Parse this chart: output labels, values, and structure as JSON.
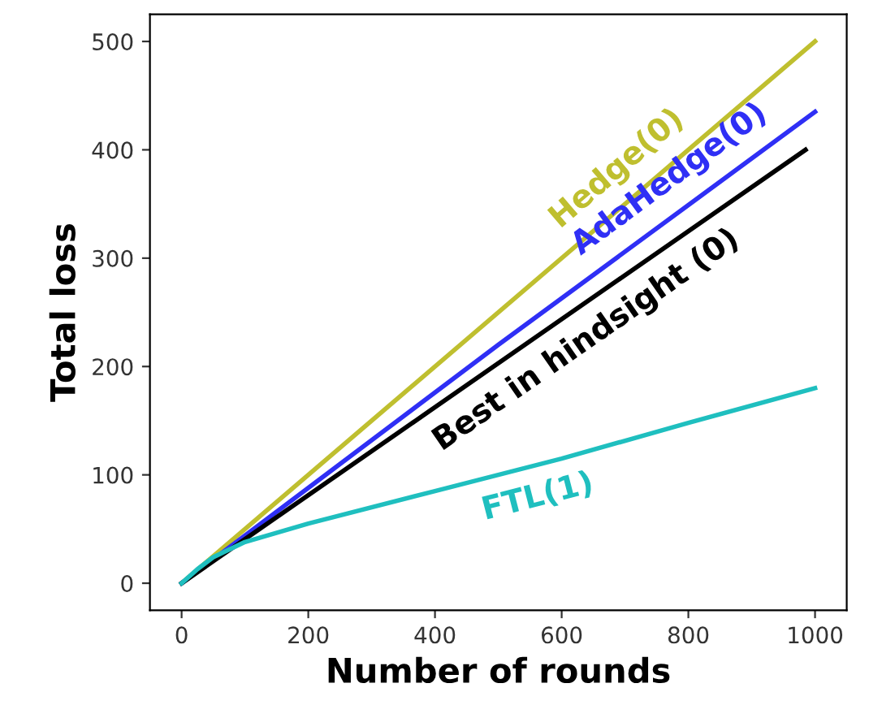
{
  "chart_data": {
    "type": "line",
    "xlabel": "Number of rounds",
    "ylabel": "Total loss",
    "xlim": [
      -50,
      1050
    ],
    "ylim": [
      -25,
      525
    ],
    "xticks": [
      0,
      200,
      400,
      600,
      800,
      1000
    ],
    "yticks": [
      0,
      100,
      200,
      300,
      400,
      500
    ],
    "grid": false,
    "legend": false,
    "marker": "none",
    "line_style": "solid",
    "series": [
      {
        "name": "Hedge(0)",
        "color": "#bfbf2f",
        "x": [
          0,
          1000
        ],
        "values": [
          0,
          500
        ]
      },
      {
        "name": "AdaHedge(0)",
        "color": "#2f2ff5",
        "x": [
          0,
          500,
          1000
        ],
        "values": [
          0,
          220,
          435
        ]
      },
      {
        "name": "Best in hindsight (0)",
        "color": "#000000",
        "x": [
          0,
          985
        ],
        "values": [
          0,
          400
        ]
      },
      {
        "name": "FTL(1)",
        "color": "#1fbfbf",
        "x": [
          0,
          25,
          50,
          100,
          200,
          400,
          600,
          800,
          1000
        ],
        "values": [
          0,
          13,
          24,
          38,
          55,
          85,
          115,
          148,
          180
        ]
      }
    ]
  }
}
